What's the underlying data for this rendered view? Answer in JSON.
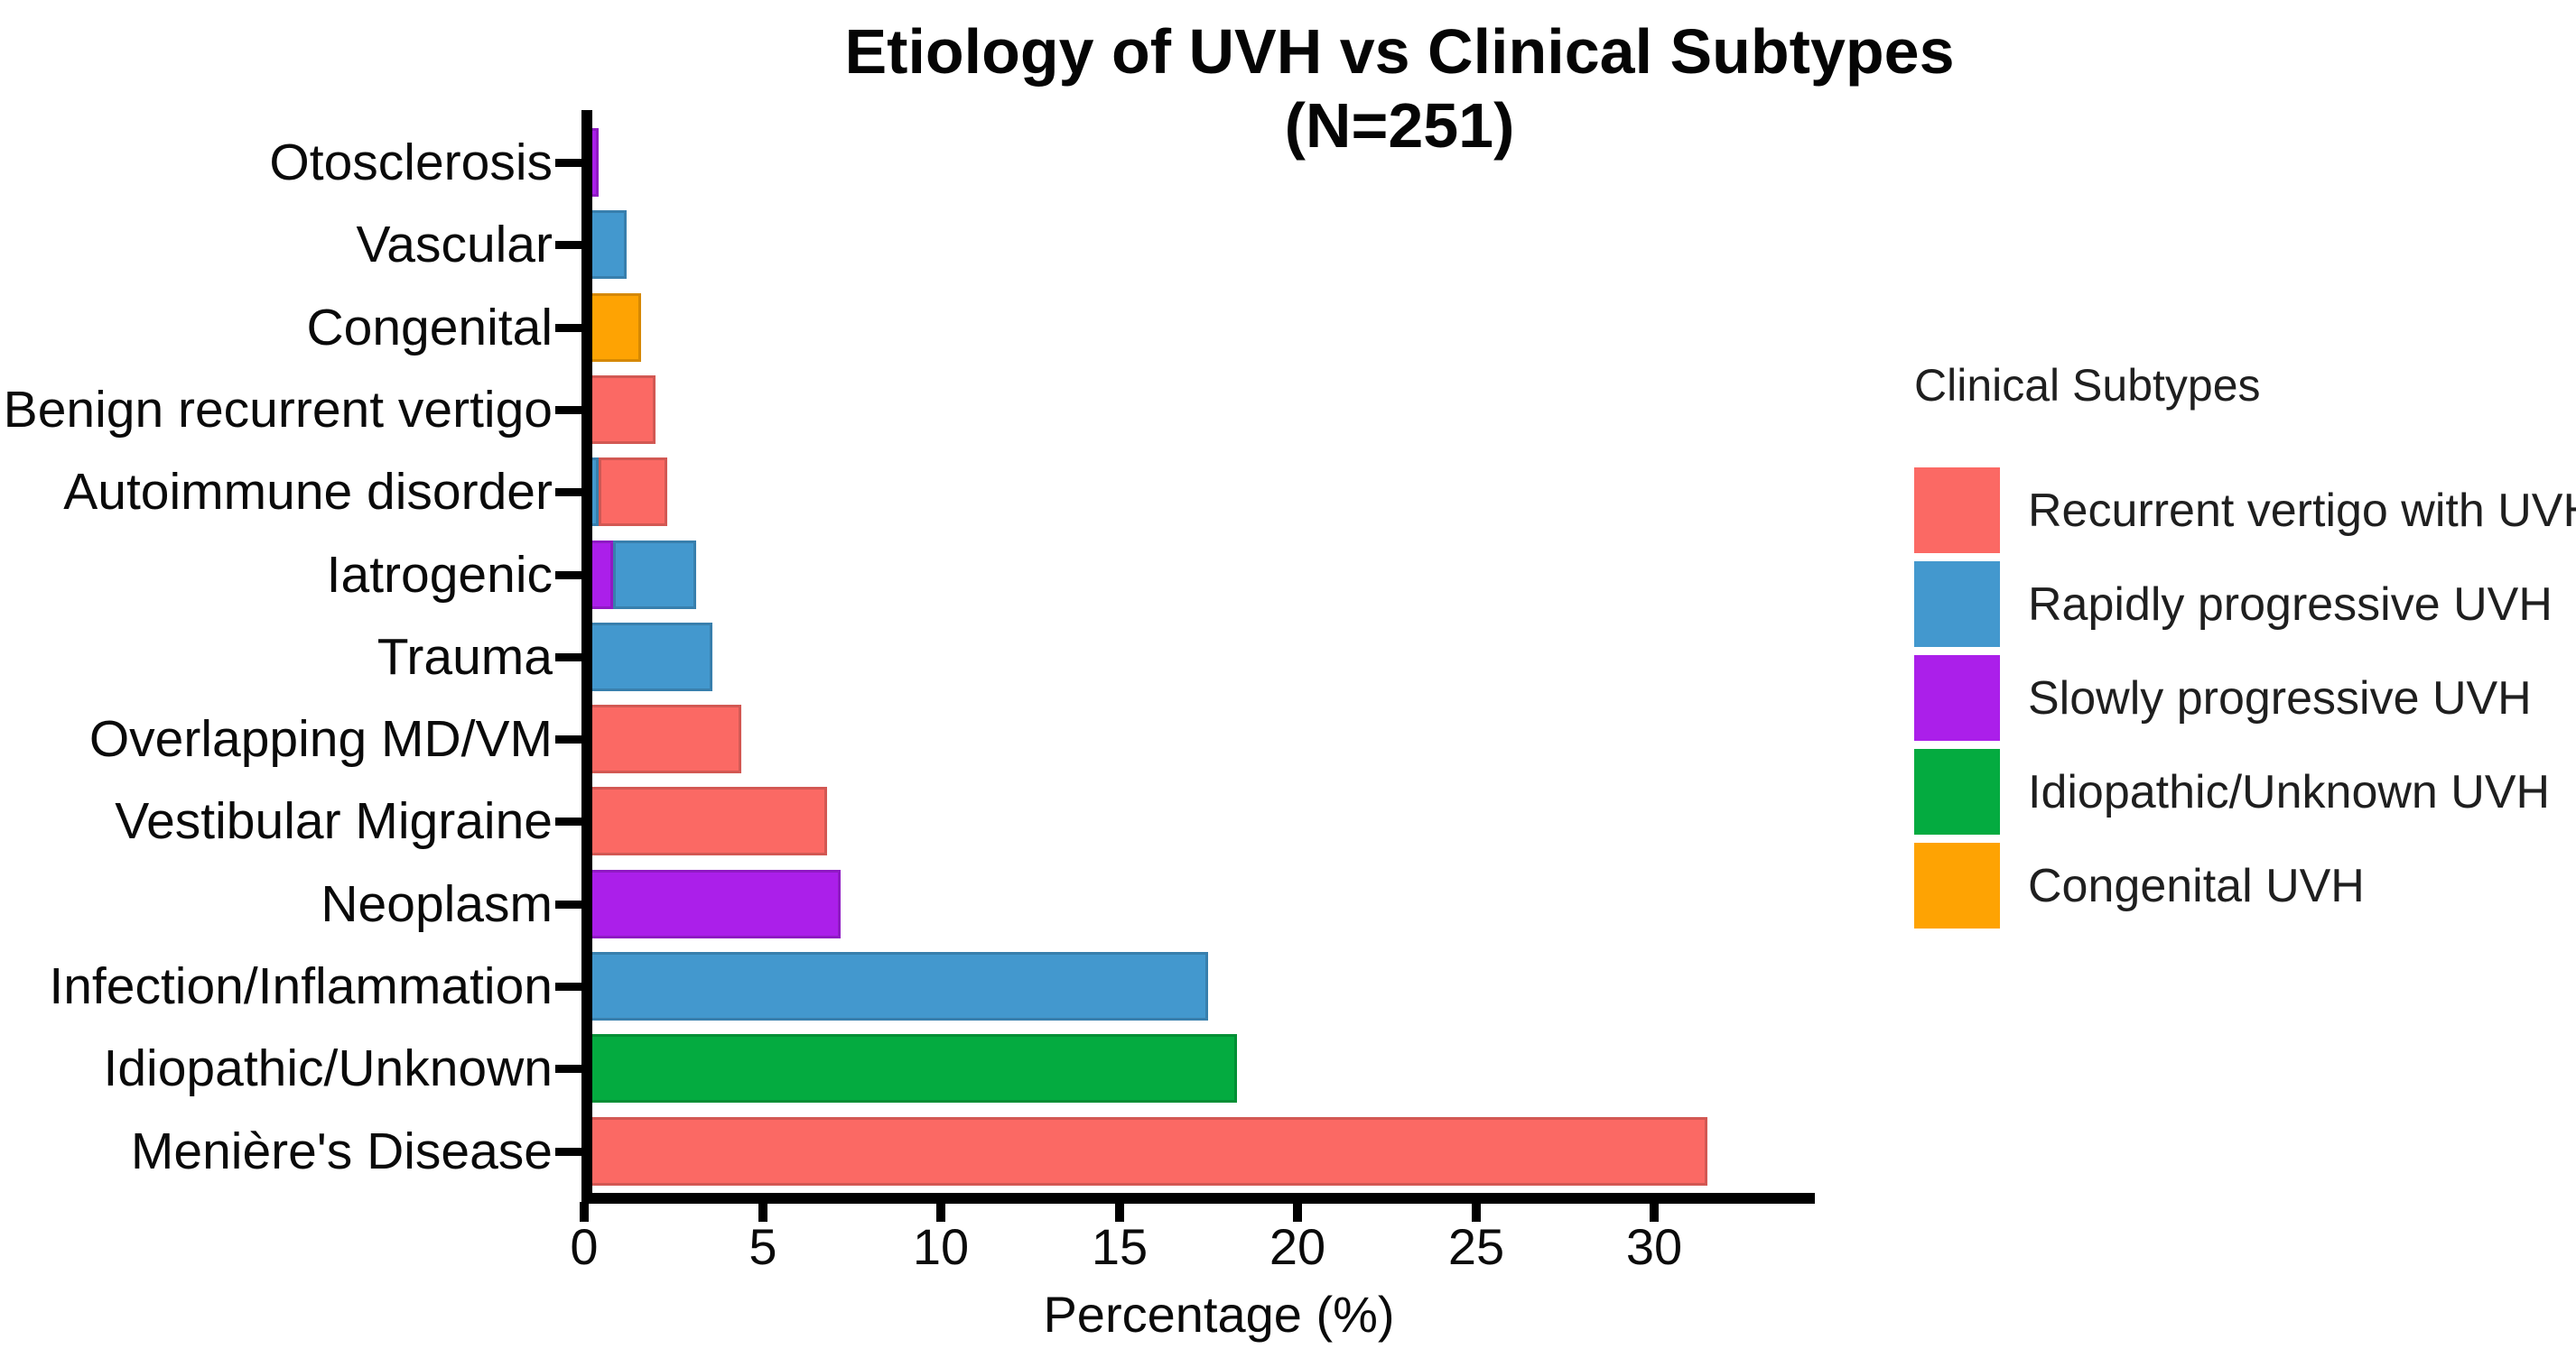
{
  "figure": {
    "title_line1": "Etiology of UVH vs Clinical Subtypes",
    "title_line2": "(N=251)"
  },
  "chart_data": {
    "type": "bar",
    "orientation": "horizontal",
    "stacked": true,
    "title": "Etiology of UVH vs Clinical Subtypes (N=251)",
    "n_total": 251,
    "xlabel": "Percentage (%)",
    "xticks": [
      0,
      5,
      10,
      15,
      20,
      25,
      30
    ],
    "xlim": [
      0,
      34.5
    ],
    "grid": false,
    "legend_position": "right",
    "legend_title": "Clinical Subtypes",
    "subtypes": [
      {
        "label": "Recurrent vertigo with UVH",
        "color": "#FB6964"
      },
      {
        "label": "Rapidly progressive UVH",
        "color": "#4398CE"
      },
      {
        "label": "Slowly progressive UVH",
        "color": "#AB1FEA"
      },
      {
        "label": "Idiopathic/Unknown UVH",
        "color": "#04AB40"
      },
      {
        "label": "Congenital UVH",
        "color": "#FEA303"
      }
    ],
    "bars_top_to_bottom": [
      {
        "category": "Otosclerosis",
        "segments": [
          {
            "subtype": "Slowly progressive UVH",
            "pct": 0.4
          }
        ]
      },
      {
        "category": "Vascular",
        "segments": [
          {
            "subtype": "Rapidly progressive UVH",
            "pct": 1.2
          }
        ]
      },
      {
        "category": "Congenital",
        "segments": [
          {
            "subtype": "Congenital UVH",
            "pct": 1.6
          }
        ]
      },
      {
        "category": "Benign recurrent vertigo",
        "segments": [
          {
            "subtype": "Recurrent vertigo with UVH",
            "pct": 2.0
          }
        ]
      },
      {
        "category": "Autoimmune disorder",
        "segments": [
          {
            "subtype": "Rapidly progressive UVH",
            "pct": 0.4
          },
          {
            "subtype": "Recurrent vertigo with UVH",
            "pct": 2.0
          }
        ]
      },
      {
        "category": "Iatrogenic",
        "segments": [
          {
            "subtype": "Slowly progressive UVH",
            "pct": 0.8
          },
          {
            "subtype": "Rapidly progressive UVH",
            "pct": 2.4
          }
        ]
      },
      {
        "category": "Trauma",
        "segments": [
          {
            "subtype": "Rapidly progressive UVH",
            "pct": 3.6
          }
        ]
      },
      {
        "category": "Overlapping MD/VM",
        "segments": [
          {
            "subtype": "Recurrent vertigo with UVH",
            "pct": 4.4
          }
        ]
      },
      {
        "category": "Vestibular Migraine",
        "segments": [
          {
            "subtype": "Recurrent vertigo with UVH",
            "pct": 6.8
          }
        ]
      },
      {
        "category": "Neoplasm",
        "segments": [
          {
            "subtype": "Slowly progressive UVH",
            "pct": 7.2
          }
        ]
      },
      {
        "category": "Infection/Inflammation",
        "segments": [
          {
            "subtype": "Rapidly progressive UVH",
            "pct": 17.5
          }
        ]
      },
      {
        "category": "Idiopathic/Unknown",
        "segments": [
          {
            "subtype": "Idiopathic/Unknown UVH",
            "pct": 18.3
          }
        ]
      },
      {
        "category": "Menière's Disease",
        "segments": [
          {
            "subtype": "Recurrent vertigo with UVH",
            "pct": 31.5
          }
        ]
      }
    ]
  }
}
